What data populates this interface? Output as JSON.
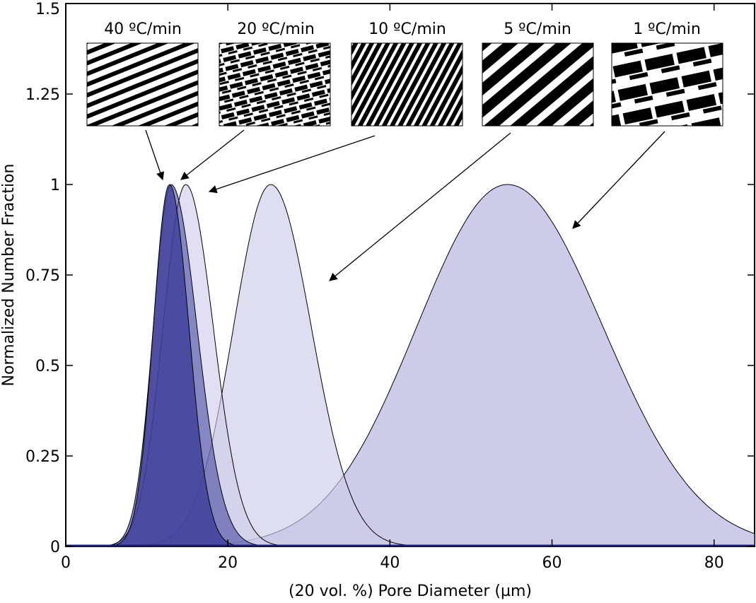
{
  "chart_data": {
    "type": "area",
    "xlabel": "(20 vol. %) Pore Diameter (µm)",
    "ylabel": "Normalized Number Fraction",
    "xlim": [
      0,
      85
    ],
    "ylim": [
      0,
      1.5
    ],
    "x_ticks": [
      0,
      20,
      40,
      60,
      80
    ],
    "x_tick_labels": [
      "0",
      "20",
      "40",
      "60",
      "80"
    ],
    "y_ticks": [
      0,
      0.25,
      0.5,
      0.75,
      1,
      1.25,
      1.5
    ],
    "y_tick_labels": [
      "0",
      "0.25",
      "0.5",
      "0.75",
      "1",
      "1.25",
      "1.5"
    ],
    "grid": false,
    "series": [
      {
        "name": "1 ºC/min",
        "peak_x": 54.5,
        "peak_y": 1.0,
        "sigma_left": 11.2,
        "sigma_right": 11.8,
        "color": "#ccccea",
        "opacity": 1.0
      },
      {
        "name": "5 ºC/min",
        "peak_x": 25.3,
        "peak_y": 1.0,
        "sigma_left": 4.6,
        "sigma_right": 5.0,
        "color": "#ccccea",
        "opacity": 0.65
      },
      {
        "name": "10 ºC/min",
        "peak_x": 14.8,
        "peak_y": 1.0,
        "sigma_left": 2.8,
        "sigma_right": 3.4,
        "color": "#ccccea",
        "opacity": 0.6
      },
      {
        "name": "20 ºC/min",
        "peak_x": 13.0,
        "peak_y": 1.0,
        "sigma_left": 2.2,
        "sigma_right": 3.2,
        "color": "#3c3c9a",
        "opacity": 0.55
      },
      {
        "name": "40 ºC/min",
        "peak_x": 12.8,
        "peak_y": 1.0,
        "sigma_left": 2.0,
        "sigma_right": 2.4,
        "color": "#3c3c9a",
        "opacity": 0.8
      }
    ],
    "insets": [
      {
        "label": "40 ºC/min",
        "pattern": "fine-diagonal-lamellae",
        "points_to_series": "40 ºC/min"
      },
      {
        "label": "20 ºC/min",
        "pattern": "wavy-lamellae",
        "points_to_series": "20 ºC/min"
      },
      {
        "label": "10 ºC/min",
        "pattern": "dense-steep-lamellae",
        "points_to_series": "10 ºC/min"
      },
      {
        "label": "5 ºC/min",
        "pattern": "coarse-diagonal-lamellae",
        "points_to_series": "5 ºC/min"
      },
      {
        "label": "1 ºC/min",
        "pattern": "wide-lamellae",
        "points_to_series": "1 ºC/min"
      }
    ]
  }
}
